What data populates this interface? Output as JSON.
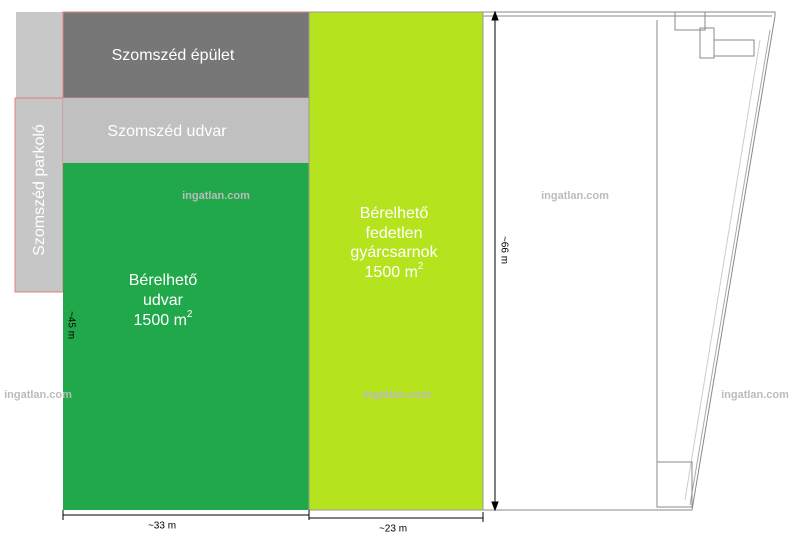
{
  "neighbor_building": {
    "label": "Szomszéd épület"
  },
  "neighbor_yard": {
    "label": "Szomszéd udvar"
  },
  "neighbor_parking": {
    "label": "Szomszéd parkoló"
  },
  "rentable_yard": {
    "lines": [
      "Bérelhető",
      "udvar"
    ],
    "area": "1500 m",
    "area_exponent": "2"
  },
  "rentable_hall": {
    "lines": [
      "Bérelhető",
      "fedetlen",
      "gyárcsarnok"
    ],
    "area": "1500 m",
    "area_exponent": "2"
  },
  "dimensions": {
    "yard_width": "~33 m",
    "hall_width": "~23 m",
    "hall_length": "~66 m",
    "yard_length": "~45 m"
  },
  "watermarks": [
    "ingatlan.com",
    "ingatlan.com",
    "ingatlan.com",
    "ingatlan.com",
    "ingatlan.com"
  ]
}
